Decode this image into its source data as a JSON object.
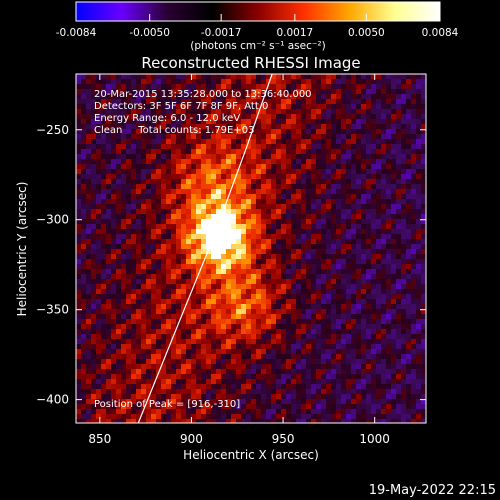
{
  "colorbar": {
    "ticks": [
      "-0.0084",
      "-0.0050",
      "-0.0017",
      "0.0017",
      "0.0050",
      "0.0084"
    ],
    "tick_values": [
      -0.0084,
      -0.005,
      -0.0017,
      0.0017,
      0.005,
      0.0084
    ],
    "range": [
      -0.0084,
      0.0084
    ],
    "unit_label": "(photons cm⁻² s⁻¹ asec⁻²)",
    "colors": [
      "#0000ff",
      "#6a00ff",
      "#2a0033",
      "#000000",
      "#8a0000",
      "#ff3000",
      "#ffa500",
      "#ffff90",
      "#ffffff"
    ]
  },
  "chart_data": {
    "type": "heatmap",
    "title": "Reconstructed RHESSI Image",
    "xlabel": "Heliocentric X (arcsec)",
    "ylabel": "Heliocentric Y (arcsec)",
    "xlim": [
      837,
      1028
    ],
    "ylim": [
      -413,
      -219
    ],
    "xticks": [
      850,
      900,
      950,
      1000
    ],
    "yticks": [
      -250,
      -300,
      -350,
      -400
    ],
    "xtick_labels": [
      "850",
      "900",
      "950",
      "1000"
    ],
    "ytick_labels": [
      "−250",
      "−300",
      "−350",
      "−400"
    ],
    "annotations": [
      "20-Mar-2015 13:35:28.000 to 13:36:40.000",
      "Detectors: 3F 5F 6F 7F 8F 9F, Att 0",
      "Energy Range: 6.0 - 12.0 keV",
      "Clean     Total counts: 1.79E+03"
    ],
    "peak_label": "Position of Peak = [916,-310]",
    "peak": [
      916,
      -310
    ],
    "limb_curve": [
      [
        871,
        -413
      ],
      [
        892,
        -360
      ],
      [
        912,
        -310
      ],
      [
        930,
        -260
      ],
      [
        944,
        -219
      ]
    ]
  },
  "footer": {
    "timestamp": "19-May-2022 22:15"
  }
}
